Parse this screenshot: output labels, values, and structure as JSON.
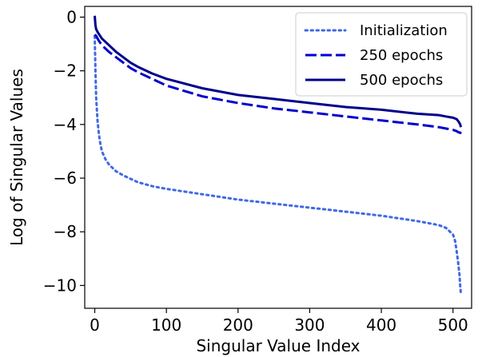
{
  "chart_data": {
    "type": "line",
    "xlabel": "Singular Value Index",
    "ylabel": "Log of Singular Values",
    "xlim": [
      -14,
      526
    ],
    "ylim": [
      -10.85,
      0.4
    ],
    "xticks": [
      0,
      100,
      200,
      300,
      400,
      500
    ],
    "yticks": [
      0,
      -2,
      -4,
      -6,
      -8,
      -10
    ],
    "ytick_labels": [
      "0",
      "−2",
      "−4",
      "−6",
      "−8",
      "−10"
    ],
    "grid": false,
    "legend_position": "upper right",
    "series": [
      {
        "name": "Initialization",
        "style": "dotted",
        "color": "#4169e1",
        "x": [
          0,
          1,
          2,
          4,
          6,
          8,
          10,
          15,
          20,
          30,
          40,
          60,
          80,
          100,
          150,
          200,
          250,
          300,
          350,
          400,
          450,
          480,
          490,
          500,
          503,
          505,
          507,
          509,
          510,
          511
        ],
        "y": [
          -0.7,
          -2.0,
          -3.0,
          -3.9,
          -4.4,
          -4.75,
          -5.0,
          -5.3,
          -5.5,
          -5.75,
          -5.9,
          -6.15,
          -6.3,
          -6.4,
          -6.6,
          -6.8,
          -6.95,
          -7.1,
          -7.25,
          -7.4,
          -7.6,
          -7.75,
          -7.85,
          -8.1,
          -8.35,
          -8.7,
          -9.1,
          -9.6,
          -10.0,
          -10.3
        ]
      },
      {
        "name": "250 epochs",
        "style": "dashed",
        "color": "#0000cd",
        "x": [
          0,
          2,
          5,
          10,
          20,
          30,
          40,
          50,
          60,
          80,
          100,
          150,
          200,
          250,
          300,
          350,
          400,
          450,
          480,
          490,
          500,
          505,
          508,
          510,
          511
        ],
        "y": [
          -0.65,
          -0.7,
          -0.85,
          -1.05,
          -1.3,
          -1.5,
          -1.7,
          -1.9,
          -2.05,
          -2.3,
          -2.55,
          -2.95,
          -3.2,
          -3.4,
          -3.55,
          -3.7,
          -3.85,
          -4.0,
          -4.1,
          -4.15,
          -4.2,
          -4.25,
          -4.3,
          -4.3,
          -4.35
        ]
      },
      {
        "name": "500 epochs",
        "style": "solid",
        "color": "#00008b",
        "x": [
          0,
          1,
          2,
          5,
          10,
          20,
          30,
          40,
          50,
          60,
          80,
          100,
          150,
          200,
          250,
          300,
          350,
          400,
          450,
          480,
          490,
          500,
          505,
          508,
          510,
          511
        ],
        "y": [
          0.05,
          -0.3,
          -0.45,
          -0.6,
          -0.8,
          -1.05,
          -1.3,
          -1.5,
          -1.7,
          -1.85,
          -2.1,
          -2.3,
          -2.65,
          -2.9,
          -3.05,
          -3.2,
          -3.35,
          -3.45,
          -3.6,
          -3.65,
          -3.7,
          -3.75,
          -3.8,
          -3.9,
          -4.0,
          -4.1
        ]
      }
    ]
  }
}
